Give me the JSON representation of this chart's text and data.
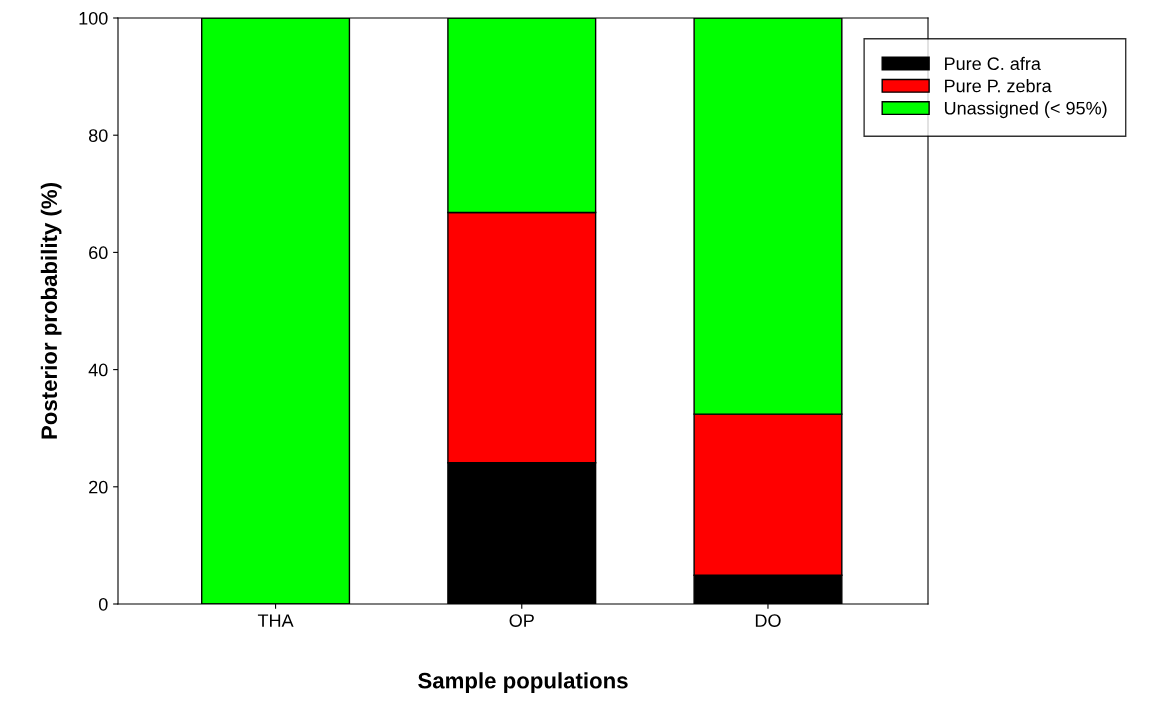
{
  "chart_data": {
    "type": "bar",
    "stacked": true,
    "xlabel": "Sample populations",
    "ylabel": "Posterior probability (%)",
    "categories": [
      "THA",
      "OP",
      "DO"
    ],
    "series": [
      {
        "name": "Pure C. afra",
        "color": "#000000",
        "values": [
          0,
          24.1,
          4.9
        ]
      },
      {
        "name": "Pure P. zebra",
        "color": "#ff0000",
        "values": [
          0,
          42.7,
          27.5
        ]
      },
      {
        "name": "Unassigned (< 95%)",
        "color": "#00ff00",
        "values": [
          100,
          33.2,
          67.6
        ]
      }
    ],
    "ylim": [
      0,
      100
    ],
    "yticks": [
      0,
      20,
      40,
      60,
      80,
      100
    ],
    "grid": false,
    "legend": "top right"
  }
}
